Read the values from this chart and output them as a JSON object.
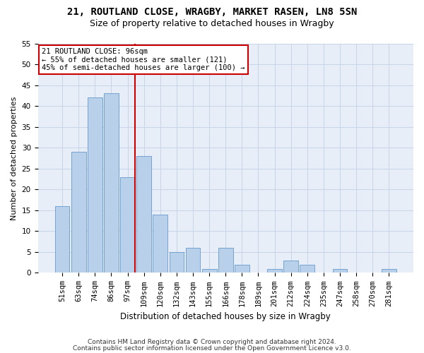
{
  "title1": "21, ROUTLAND CLOSE, WRAGBY, MARKET RASEN, LN8 5SN",
  "title2": "Size of property relative to detached houses in Wragby",
  "xlabel": "Distribution of detached houses by size in Wragby",
  "ylabel": "Number of detached properties",
  "bar_labels": [
    "51sqm",
    "63sqm",
    "74sqm",
    "86sqm",
    "97sqm",
    "109sqm",
    "120sqm",
    "132sqm",
    "143sqm",
    "155sqm",
    "166sqm",
    "178sqm",
    "189sqm",
    "201sqm",
    "212sqm",
    "224sqm",
    "235sqm",
    "247sqm",
    "258sqm",
    "270sqm",
    "281sqm"
  ],
  "bar_values": [
    16,
    29,
    42,
    43,
    23,
    28,
    14,
    5,
    6,
    1,
    6,
    2,
    0,
    1,
    3,
    2,
    0,
    1,
    0,
    0,
    1
  ],
  "bar_color": "#b8d0ea",
  "bar_edge_color": "#6699cc",
  "vline_index": 4,
  "vline_color": "#cc0000",
  "annotation_line1": "21 ROUTLAND CLOSE: 96sqm",
  "annotation_line2": "← 55% of detached houses are smaller (121)",
  "annotation_line3": "45% of semi-detached houses are larger (100) →",
  "annotation_box_color": "#ffffff",
  "annotation_box_edge_color": "#cc0000",
  "ylim": [
    0,
    55
  ],
  "yticks": [
    0,
    5,
    10,
    15,
    20,
    25,
    30,
    35,
    40,
    45,
    50,
    55
  ],
  "grid_color": "#c8d4e8",
  "background_color": "#e8eef8",
  "footer1": "Contains HM Land Registry data © Crown copyright and database right 2024.",
  "footer2": "Contains public sector information licensed under the Open Government Licence v3.0.",
  "title1_fontsize": 10,
  "title2_fontsize": 9,
  "xlabel_fontsize": 8.5,
  "ylabel_fontsize": 8,
  "tick_fontsize": 7.5,
  "footer_fontsize": 6.5,
  "annot_fontsize": 7.5
}
